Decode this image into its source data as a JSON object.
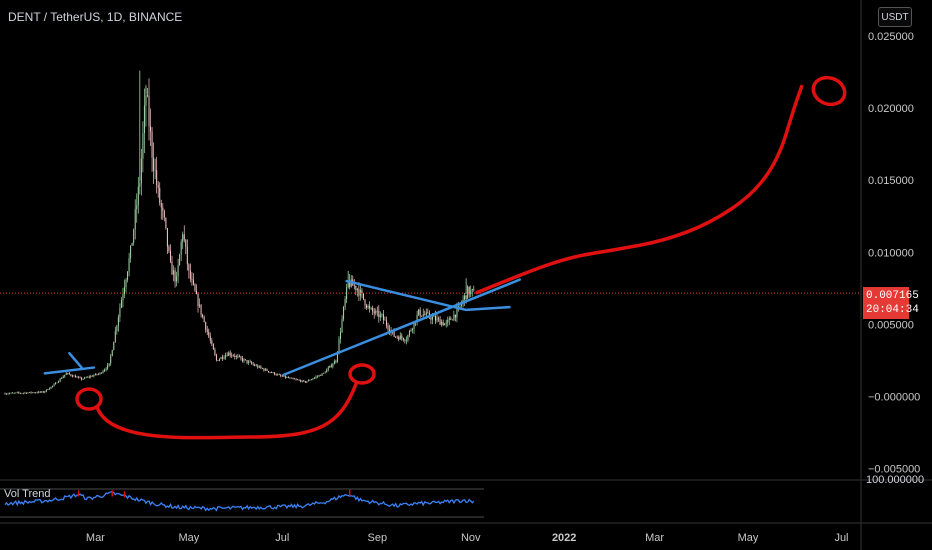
{
  "header": {
    "title": "DENT / TetherUS, 1D, BINANCE",
    "currency": "USDT"
  },
  "last_price": {
    "value": "0.007165",
    "countdown": "20:04:34"
  },
  "indicator": {
    "label": "Vol Trend",
    "axis_value": "100.000000"
  },
  "colors": {
    "background": "#000000",
    "candle_up": "#a5d6a7",
    "candle_down": "#f5c7c7",
    "drawing_blue": "#3b8fe0",
    "drawing_red": "#e01010",
    "price_tag": "#e53935",
    "indicator_line": "#3b82f6"
  },
  "chart_data": {
    "type": "candlestick",
    "x_tick_labels": [
      "Mar",
      "May",
      "Jul",
      "Sep",
      "Nov",
      "2022",
      "Mar",
      "May",
      "Jul"
    ],
    "y_tick_labels": [
      "0.025000",
      "0.020000",
      "0.015000",
      "0.010000",
      "0.005000",
      "−0.000000",
      "−0.005000"
    ],
    "y_ticks": [
      0.025,
      0.02,
      0.015,
      0.01,
      0.005,
      0,
      -0.005
    ],
    "ylim": [
      -0.0058,
      0.0275
    ],
    "x_ticks": [
      {
        "label": "Mar",
        "day": 59
      },
      {
        "label": "May",
        "day": 120
      },
      {
        "label": "Jul",
        "day": 181
      },
      {
        "label": "Sep",
        "day": 243
      },
      {
        "label": "Nov",
        "day": 304
      },
      {
        "label": "2022",
        "day": 365
      },
      {
        "label": "Mar",
        "day": 424
      },
      {
        "label": "May",
        "day": 485
      },
      {
        "label": "Jul",
        "day": 546
      }
    ],
    "close_path": [
      [
        0,
        0.0002
      ],
      [
        25,
        0.0003
      ],
      [
        32,
        0.0008
      ],
      [
        40,
        0.0016
      ],
      [
        50,
        0.0012
      ],
      [
        62,
        0.0016
      ],
      [
        68,
        0.0022
      ],
      [
        75,
        0.0062
      ],
      [
        82,
        0.01
      ],
      [
        88,
        0.015
      ],
      [
        92,
        0.021
      ],
      [
        96,
        0.017
      ],
      [
        100,
        0.014
      ],
      [
        104,
        0.012
      ],
      [
        108,
        0.009
      ],
      [
        112,
        0.008
      ],
      [
        116,
        0.0115
      ],
      [
        120,
        0.0085
      ],
      [
        126,
        0.0065
      ],
      [
        132,
        0.0045
      ],
      [
        138,
        0.0025
      ],
      [
        146,
        0.003
      ],
      [
        156,
        0.0025
      ],
      [
        166,
        0.002
      ],
      [
        180,
        0.0014
      ],
      [
        196,
        0.001
      ],
      [
        208,
        0.0016
      ],
      [
        216,
        0.0025
      ],
      [
        221,
        0.006
      ],
      [
        224,
        0.0079
      ],
      [
        230,
        0.0075
      ],
      [
        238,
        0.006
      ],
      [
        246,
        0.0055
      ],
      [
        254,
        0.0042
      ],
      [
        262,
        0.004
      ],
      [
        270,
        0.0058
      ],
      [
        278,
        0.0055
      ],
      [
        288,
        0.005
      ],
      [
        296,
        0.006
      ],
      [
        302,
        0.0073
      ],
      [
        306,
        0.0072
      ]
    ],
    "last_day": 306,
    "drawings": {
      "triangle_upper": [
        [
          223,
          0.008
        ],
        [
          301,
          0.006
        ]
      ],
      "triangle_lower": [
        [
          182,
          0.0015
        ],
        [
          336,
          0.0081
        ]
      ],
      "mar_upper": [
        [
          42,
          0.003
        ],
        [
          50,
          0.002
        ]
      ],
      "mar_lower": [
        [
          26,
          0.0016
        ],
        [
          58,
          0.002
        ]
      ]
    },
    "projection_path": [
      [
        308,
        0.0072
      ],
      [
        340,
        0.0086
      ],
      [
        370,
        0.0097
      ],
      [
        400,
        0.0102
      ],
      [
        430,
        0.0108
      ],
      [
        460,
        0.012
      ],
      [
        488,
        0.014
      ],
      [
        505,
        0.0165
      ],
      [
        515,
        0.02
      ],
      [
        520,
        0.0215
      ]
    ],
    "indicator": {
      "ylim": [
        0,
        100
      ],
      "values": [
        [
          0,
          48
        ],
        [
          20,
          55
        ],
        [
          30,
          60
        ],
        [
          40,
          70
        ],
        [
          48,
          80
        ],
        [
          54,
          65
        ],
        [
          62,
          75
        ],
        [
          70,
          85
        ],
        [
          78,
          75
        ],
        [
          88,
          60
        ],
        [
          100,
          45
        ],
        [
          112,
          35
        ],
        [
          124,
          32
        ],
        [
          136,
          30
        ],
        [
          150,
          32
        ],
        [
          166,
          35
        ],
        [
          180,
          36
        ],
        [
          196,
          40
        ],
        [
          210,
          55
        ],
        [
          220,
          75
        ],
        [
          225,
          80
        ],
        [
          232,
          60
        ],
        [
          244,
          50
        ],
        [
          256,
          40
        ],
        [
          268,
          48
        ],
        [
          280,
          50
        ],
        [
          290,
          55
        ],
        [
          300,
          60
        ],
        [
          306,
          55
        ]
      ]
    }
  }
}
